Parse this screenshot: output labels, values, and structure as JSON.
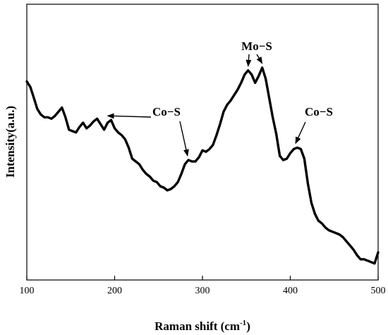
{
  "chart_data": {
    "type": "line",
    "title": "",
    "xlabel": "Raman shift (cm",
    "xlabel_sup": "-1",
    "xlabel_close": ")",
    "ylabel": "Intensity(a.u.)",
    "xlim": [
      100,
      500
    ],
    "ylim": [
      0,
      100
    ],
    "x_ticks": [
      100,
      200,
      300,
      400,
      500
    ],
    "x_tick_labels": [
      "100",
      "200",
      "300",
      "400",
      "500"
    ],
    "y_tick_labels_shown": false,
    "grid": false,
    "series": [
      {
        "color": "#000000",
        "points": [
          [
            100,
            72
          ],
          [
            104,
            70
          ],
          [
            108,
            66
          ],
          [
            112,
            62
          ],
          [
            116,
            60
          ],
          [
            120,
            59
          ],
          [
            124,
            59
          ],
          [
            128,
            58.5
          ],
          [
            132,
            59.5
          ],
          [
            136,
            61
          ],
          [
            140,
            62.5
          ],
          [
            144,
            59
          ],
          [
            148,
            54.5
          ],
          [
            152,
            54
          ],
          [
            156,
            53.5
          ],
          [
            160,
            55.5
          ],
          [
            164,
            57
          ],
          [
            168,
            55
          ],
          [
            172,
            56
          ],
          [
            176,
            57.5
          ],
          [
            180,
            58.5
          ],
          [
            184,
            56.5
          ],
          [
            188,
            54.5
          ],
          [
            192,
            57
          ],
          [
            196,
            58
          ],
          [
            200,
            55
          ],
          [
            204,
            53.5
          ],
          [
            208,
            52.5
          ],
          [
            212,
            51
          ],
          [
            216,
            48
          ],
          [
            220,
            44
          ],
          [
            224,
            43
          ],
          [
            228,
            42
          ],
          [
            232,
            40
          ],
          [
            236,
            38.5
          ],
          [
            240,
            37.5
          ],
          [
            244,
            36
          ],
          [
            248,
            35.5
          ],
          [
            252,
            34
          ],
          [
            256,
            33.5
          ],
          [
            260,
            32.5
          ],
          [
            264,
            33
          ],
          [
            268,
            34
          ],
          [
            272,
            35.5
          ],
          [
            276,
            38.5
          ],
          [
            280,
            42
          ],
          [
            284,
            43.5
          ],
          [
            288,
            43
          ],
          [
            292,
            43
          ],
          [
            296,
            44.5
          ],
          [
            300,
            47
          ],
          [
            304,
            46.5
          ],
          [
            308,
            47.5
          ],
          [
            312,
            49
          ],
          [
            316,
            52.5
          ],
          [
            320,
            56.5
          ],
          [
            324,
            61
          ],
          [
            328,
            63.5
          ],
          [
            332,
            65
          ],
          [
            336,
            67
          ],
          [
            340,
            69
          ],
          [
            344,
            71.5
          ],
          [
            348,
            74.5
          ],
          [
            352,
            76
          ],
          [
            356,
            74.5
          ],
          [
            360,
            71.5
          ],
          [
            364,
            74
          ],
          [
            368,
            77
          ],
          [
            372,
            73
          ],
          [
            376,
            66
          ],
          [
            380,
            59
          ],
          [
            384,
            53
          ],
          [
            388,
            45
          ],
          [
            392,
            43.5
          ],
          [
            396,
            44
          ],
          [
            400,
            46
          ],
          [
            404,
            47.5
          ],
          [
            408,
            48
          ],
          [
            412,
            47.5
          ],
          [
            416,
            44
          ],
          [
            420,
            35
          ],
          [
            424,
            28
          ],
          [
            428,
            24
          ],
          [
            432,
            21.5
          ],
          [
            436,
            20.5
          ],
          [
            440,
            19
          ],
          [
            444,
            18
          ],
          [
            448,
            17.5
          ],
          [
            452,
            17
          ],
          [
            456,
            16.5
          ],
          [
            460,
            15.5
          ],
          [
            464,
            14
          ],
          [
            468,
            12.5
          ],
          [
            472,
            11
          ],
          [
            476,
            9
          ],
          [
            480,
            7.5
          ],
          [
            484,
            7.5
          ],
          [
            488,
            7
          ],
          [
            492,
            6.5
          ],
          [
            496,
            6
          ],
          [
            500,
            10
          ]
        ]
      }
    ],
    "annotations": [
      {
        "text": "Co−S",
        "arrow_to": [
          [
            192,
            58
          ]
        ]
      },
      {
        "text": "Co−S",
        "arrow_to": [
          [
            283,
            43.5
          ]
        ]
      },
      {
        "text": "Mo−S",
        "arrow_to": [
          [
            352,
            76
          ],
          [
            368,
            77
          ]
        ]
      },
      {
        "text": "Co−S",
        "arrow_to": [
          [
            406,
            48
          ]
        ]
      }
    ]
  }
}
